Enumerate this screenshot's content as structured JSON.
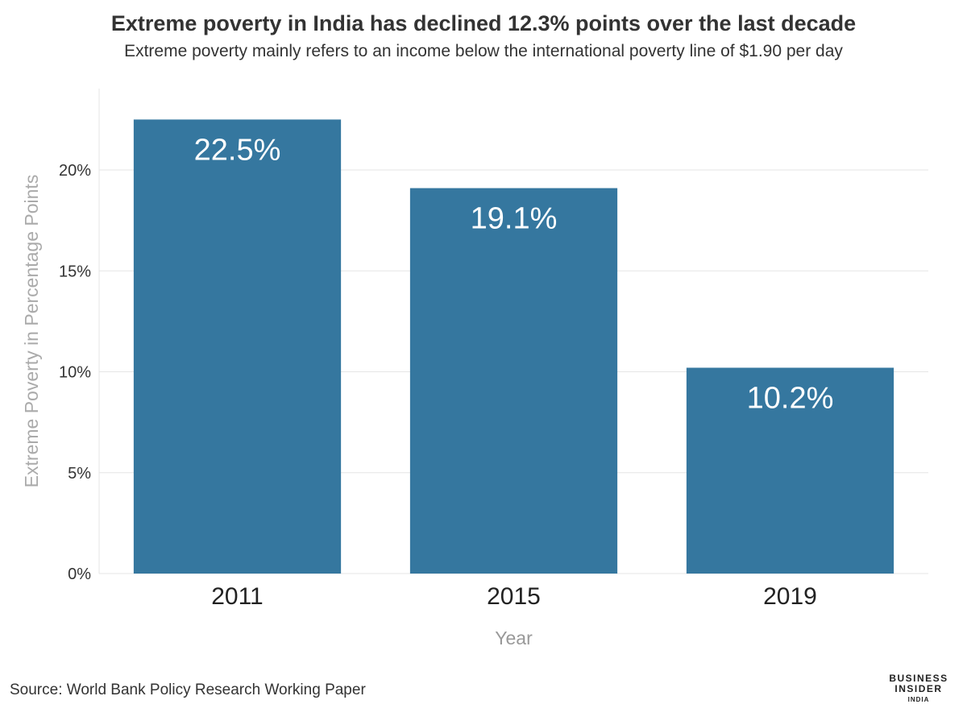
{
  "chart_data": {
    "type": "bar",
    "title": "Extreme poverty in India has declined 12.3% points over the last decade",
    "subtitle": "Extreme poverty mainly refers to an income below the international poverty line of $1.90 per day",
    "categories": [
      "2011",
      "2015",
      "2019"
    ],
    "values": [
      22.5,
      19.1,
      10.2
    ],
    "data_labels": [
      "22.5%",
      "19.1%",
      "10.2%"
    ],
    "xlabel": "Year",
    "ylabel": "Extreme Poverty in Percentage Points",
    "ylim": [
      0,
      24
    ],
    "yticks": [
      0,
      5,
      10,
      15,
      20
    ],
    "ytick_labels": [
      "0%",
      "5%",
      "10%",
      "15%",
      "20%"
    ],
    "grid": true,
    "bar_color": "#35779f"
  },
  "source": "Source: World Bank Policy Research Working Paper",
  "logo": {
    "line1": "BUSINESS",
    "line2": "INSIDER",
    "line3": "INDIA"
  }
}
